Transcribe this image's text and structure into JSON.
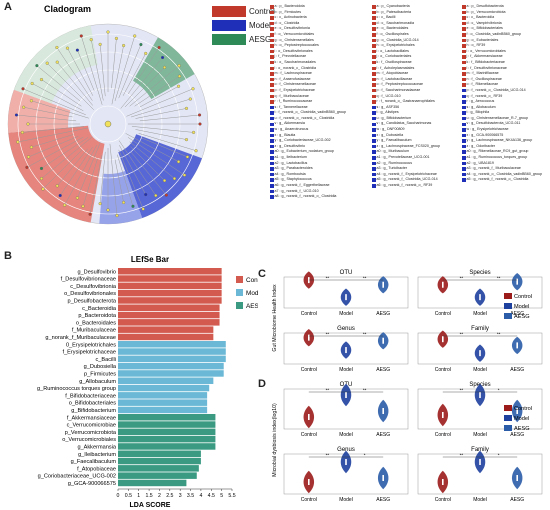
{
  "panels": {
    "a": "A",
    "b": "B",
    "c": "C",
    "d": "D"
  },
  "colors": {
    "control": "#c0392b",
    "model": "#1f2fb8",
    "aesg": "#2e8b57",
    "bar_control": "#d35a4f",
    "bar_model": "#6ab8d6",
    "bar_aesg": "#3a9a82",
    "violin_control": "#9b1b1b",
    "violin_model": "#1d3f9e",
    "violin_aesg": "#2a5ca8"
  },
  "cladogram": {
    "title": "Cladogram",
    "legend": [
      "Control",
      "Model",
      "AESG"
    ],
    "taxa_columns": [
      [
        {
          "label": "a : p_ Bacteroidota",
          "group": "control"
        },
        {
          "label": "b : p_ Firmicutes",
          "group": "control"
        },
        {
          "label": "c : c_ Actinobacteria",
          "group": "control"
        },
        {
          "label": "d : c_ Clostridia",
          "group": "control"
        },
        {
          "label": "e : c_ Desulfovibrionia",
          "group": "control"
        },
        {
          "label": "f : o_ Verrucomicrobiales",
          "group": "control"
        },
        {
          "label": "g : o_ Christensenellales",
          "group": "control"
        },
        {
          "label": "h : o_ Peptostreptococcales",
          "group": "control"
        },
        {
          "label": "i : o_ Desulfovibrionales",
          "group": "control"
        },
        {
          "label": "j : f_ Prevotellaceae",
          "group": "control"
        },
        {
          "label": "k : o_ Saccharimonadales",
          "group": "control"
        },
        {
          "label": "l : o_ norank_c_ Clostridia",
          "group": "control"
        },
        {
          "label": "m : f_ Lachnospiraceae",
          "group": "control"
        },
        {
          "label": "n : f_ Anaerofustaceae",
          "group": "control"
        },
        {
          "label": "o : f_ Christensenellaceae",
          "group": "control"
        },
        {
          "label": "p : f_ Erysipelotrichaceae",
          "group": "control"
        },
        {
          "label": "q : f_ Muribaculaceae",
          "group": "control"
        },
        {
          "label": "r : f_ Ruminococcaceae",
          "group": "control"
        },
        {
          "label": "s : f_ Tannerellaceae",
          "group": "model"
        },
        {
          "label": "t : f_ norank_o_ Clostridia_vadinBB60_group",
          "group": "model"
        },
        {
          "label": "u : f_ norank_o_ norank_c_ Clostridia",
          "group": "model"
        },
        {
          "label": "v : g_ Akkermansia",
          "group": "model"
        },
        {
          "label": "w : g_ Anaerotruncus",
          "group": "model"
        },
        {
          "label": "x : g_ Blautia",
          "group": "model"
        },
        {
          "label": "y : g_ Coriobacteriaceae_UCG-002",
          "group": "model"
        },
        {
          "label": "z : g_ Desulfovibrio",
          "group": "model"
        },
        {
          "label": "a0 : g_ Eubacterium_nodatum_group",
          "group": "model"
        },
        {
          "label": "a1 : g_ Ileibacterium",
          "group": "model"
        },
        {
          "label": "a2 : g_ Lactobacillus",
          "group": "model"
        },
        {
          "label": "a3 : g_ Parabacteroides",
          "group": "model"
        },
        {
          "label": "a4 : g_ Romboutsia",
          "group": "model"
        },
        {
          "label": "a5 : g_ Staphylococcus",
          "group": "model"
        },
        {
          "label": "a6 : g_ norank_f_ Eggerthellaceae",
          "group": "model"
        },
        {
          "label": "a7 : g_ norank_f_ UCG-010",
          "group": "model"
        },
        {
          "label": "a8 : g_ norank_f_ norank_o_ Clostridia",
          "group": "model"
        }
      ],
      [
        {
          "label": "a : p_ Cyanobacteria",
          "group": "control"
        },
        {
          "label": "b : p_ Patescibacteria",
          "group": "control"
        },
        {
          "label": "c : c_ Bacilli",
          "group": "control"
        },
        {
          "label": "d : c_ Saccharimonadia",
          "group": "control"
        },
        {
          "label": "e : o_ Bacteroidales",
          "group": "control"
        },
        {
          "label": "f : o_ Oscillospirales",
          "group": "control"
        },
        {
          "label": "g : o_ Clostridia_UCG-014",
          "group": "control"
        },
        {
          "label": "h : o_ Erysipelotrichales",
          "group": "control"
        },
        {
          "label": "i : o_ Lactobacillales",
          "group": "control"
        },
        {
          "label": "j : o_ Coriobacteriales",
          "group": "control"
        },
        {
          "label": "k : f_ Oscillospiraceae",
          "group": "control"
        },
        {
          "label": "l : f_ Acholeplasmatales",
          "group": "control"
        },
        {
          "label": "m : f_ Atopobiaceae",
          "group": "control"
        },
        {
          "label": "n : f_ Lactobacillaceae",
          "group": "control"
        },
        {
          "label": "o : f_ Peptostreptococcaceae",
          "group": "control"
        },
        {
          "label": "p : f_ Saccharimonadaceae",
          "group": "control"
        },
        {
          "label": "q : f_ UCG-010",
          "group": "control"
        },
        {
          "label": "r : f_ norank_o_ Gastranaerophilales",
          "group": "control"
        },
        {
          "label": "s : g_ ASF356",
          "group": "model"
        },
        {
          "label": "t : g_ Alistipes",
          "group": "model"
        },
        {
          "label": "u : g_ Bifidobacterium",
          "group": "model"
        },
        {
          "label": "v : g_ Candidatus_Saccharimonas",
          "group": "model"
        },
        {
          "label": "w : g_ DNF00809",
          "group": "model"
        },
        {
          "label": "x : g_ Dubosiella",
          "group": "model"
        },
        {
          "label": "y : g_ Faecalibaculum",
          "group": "model"
        },
        {
          "label": "z : g_ Lachnospiraceae_FCS020_group",
          "group": "model"
        },
        {
          "label": "a0 : g_ Muribaculum",
          "group": "model"
        },
        {
          "label": "a1 : g_ Prevotellaceae_UCG-001",
          "group": "model"
        },
        {
          "label": "a2 : g_ Ruminococcus",
          "group": "model"
        },
        {
          "label": "a3 : g_ Turicibacter",
          "group": "model"
        },
        {
          "label": "a4 : g_ norank_f_ Erysipelotrichaceae",
          "group": "model"
        },
        {
          "label": "a5 : g_ norank_f_ Clostridia_UCG-014",
          "group": "model"
        },
        {
          "label": "a6 : g_ norank_f_ norank_o_ RF39",
          "group": "model"
        }
      ],
      [
        {
          "label": "a : p_ Desulfobacterota",
          "group": "control"
        },
        {
          "label": "b : p_ Verrucomicrobiota",
          "group": "control"
        },
        {
          "label": "c : c_ Bacteroidia",
          "group": "control"
        },
        {
          "label": "d : c_ Vampirivibrionia",
          "group": "control"
        },
        {
          "label": "e : o_ Bifidobacteriales",
          "group": "control"
        },
        {
          "label": "f : o_ Clostridia_vadinBB60_group",
          "group": "control"
        },
        {
          "label": "g : o_ Eubacteriales",
          "group": "control"
        },
        {
          "label": "h : o_ RF39",
          "group": "control"
        },
        {
          "label": "i : o_ Verrucomicrobiales",
          "group": "control"
        },
        {
          "label": "j : f_ Akkermansiaceae",
          "group": "control"
        },
        {
          "label": "k : f_ Bifidobacteriaceae",
          "group": "control"
        },
        {
          "label": "l : f_ Desulfovibrionaceae",
          "group": "control"
        },
        {
          "label": "m : f_ Marinifilaceae",
          "group": "control"
        },
        {
          "label": "n : f_ Oscillospiraceae",
          "group": "control"
        },
        {
          "label": "o : f_ Rikenellaceae",
          "group": "control"
        },
        {
          "label": "p : f_ norank_o_ Clostridia_UCG-014",
          "group": "model"
        },
        {
          "label": "q : f_ norank_o_ RF39",
          "group": "model"
        },
        {
          "label": "r : g_ Aerococcus",
          "group": "model"
        },
        {
          "label": "s : g_ Allobaculum",
          "group": "model"
        },
        {
          "label": "t : g_ Bilophila",
          "group": "model"
        },
        {
          "label": "u : g_ Christensenellaceae_R-7_group",
          "group": "model"
        },
        {
          "label": "v : g_ Desulfobacterota_UCG-011",
          "group": "model"
        },
        {
          "label": "w : g_ Erysipelotrichaceae",
          "group": "model"
        },
        {
          "label": "x : g_ GCA-900066575",
          "group": "model"
        },
        {
          "label": "y : g_ Lachnospiraceae_NK4A136_group",
          "group": "model"
        },
        {
          "label": "z : g_ Odoribacter",
          "group": "model"
        },
        {
          "label": "a0 : g_ Rikenellaceae_RC9_gut_group",
          "group": "model"
        },
        {
          "label": "a1 : g_ Ruminococcus_torques_group",
          "group": "model"
        },
        {
          "label": "a2 : g_ UBA1819",
          "group": "model"
        },
        {
          "label": "a3 : g_ norank_f_ Muribaculaceae",
          "group": "model"
        },
        {
          "label": "a4 : g_ norank_o_ Clostridia_vadinBB60_group",
          "group": "model"
        },
        {
          "label": "a5 : g_ norank_f_ norank_o_ Clostridia",
          "group": "model"
        }
      ]
    ]
  },
  "chart_data": [
    {
      "type": "bar",
      "orientation": "horizontal",
      "title": "LEfSe Bar",
      "xlabel": "LDA SCORE",
      "xlim": [
        0,
        5.5
      ],
      "xticks": [
        "0",
        "0.5",
        "1",
        "1.5",
        "2",
        "2.5",
        "3",
        "3.5",
        "4",
        "4.5",
        "5",
        "5.5"
      ],
      "legend": [
        "Control",
        "Model",
        "AESG"
      ],
      "legend_position": "right",
      "bars": [
        {
          "label": "g_Desulfovibrio",
          "value": 5.0,
          "group": "Control"
        },
        {
          "label": "f_Desulfovibrionaceae",
          "value": 5.0,
          "group": "Control"
        },
        {
          "label": "c_Desulfovibrionia",
          "value": 5.0,
          "group": "Control"
        },
        {
          "label": "o_Desulfovibrionales",
          "value": 5.0,
          "group": "Control"
        },
        {
          "label": "p_Desulfobacterota",
          "value": 5.0,
          "group": "Control"
        },
        {
          "label": "c_Bacteroidia",
          "value": 4.9,
          "group": "Control"
        },
        {
          "label": "p_Bacteroidota",
          "value": 4.9,
          "group": "Control"
        },
        {
          "label": "o_Bacteroidales",
          "value": 4.9,
          "group": "Control"
        },
        {
          "label": "f_Muribaculaceae",
          "value": 4.6,
          "group": "Control"
        },
        {
          "label": "g_norank_f_Muribaculaceae",
          "value": 4.6,
          "group": "Control"
        },
        {
          "label": "0_Erysipelotrichales",
          "value": 5.2,
          "group": "Model"
        },
        {
          "label": "f_Erysipelotrichaceae",
          "value": 5.2,
          "group": "Model"
        },
        {
          "label": "c_Bacilli",
          "value": 5.2,
          "group": "Model"
        },
        {
          "label": "g_Dubosiella",
          "value": 5.1,
          "group": "Model"
        },
        {
          "label": "p_Firmicutes",
          "value": 5.1,
          "group": "Model"
        },
        {
          "label": "g_Allobaculum",
          "value": 4.6,
          "group": "Model"
        },
        {
          "label": "g_Ruminococcus torques group",
          "value": 4.4,
          "group": "Model"
        },
        {
          "label": "f_Bifidobacteriaceae",
          "value": 4.3,
          "group": "Model"
        },
        {
          "label": "o_Bifidobacteriales",
          "value": 4.3,
          "group": "Model"
        },
        {
          "label": "g_Bifidobacterium",
          "value": 4.3,
          "group": "Model"
        },
        {
          "label": "f_Akkermansiaceae",
          "value": 4.7,
          "group": "AESG"
        },
        {
          "label": "c_Verrucomicrobiae",
          "value": 4.7,
          "group": "AESG"
        },
        {
          "label": "p_Verrucomicrobiota",
          "value": 4.7,
          "group": "AESG"
        },
        {
          "label": "o_Verrucomicrobiales",
          "value": 4.7,
          "group": "AESG"
        },
        {
          "label": "g_Akkermansia",
          "value": 4.7,
          "group": "AESG"
        },
        {
          "label": "g_Ileibacterium",
          "value": 4.0,
          "group": "AESG"
        },
        {
          "label": "g_Faecalibaculum",
          "value": 4.0,
          "group": "AESG"
        },
        {
          "label": "f_Atopobiaceae",
          "value": 3.9,
          "group": "AESG"
        },
        {
          "label": "g_Coriobacteriaceae_UCG-002",
          "value": 3.8,
          "group": "AESG"
        },
        {
          "label": "g_GCA-900066575",
          "value": 3.3,
          "group": "AESG"
        }
      ]
    },
    {
      "type": "violin",
      "panel": "C",
      "ylabel": "Gut Microbiome Health Index",
      "legend": [
        "Control",
        "Model",
        "AESG"
      ],
      "subplots": [
        {
          "title": "OTU",
          "categories": [
            "Control",
            "Model",
            "AESG"
          ],
          "medians": [
            0.9,
            0.35,
            0.75
          ],
          "significance": [
            "**",
            "**"
          ]
        },
        {
          "title": "Species",
          "categories": [
            "Control",
            "Model",
            "AESG"
          ],
          "medians": [
            0.75,
            0.35,
            0.85
          ],
          "significance": [
            "**",
            "**"
          ]
        },
        {
          "title": "Genus",
          "categories": [
            "Control",
            "Model",
            "AESG"
          ],
          "medians": [
            0.85,
            0.45,
            0.75
          ],
          "significance": [
            "**",
            "**"
          ]
        },
        {
          "title": "Family",
          "categories": [
            "Control",
            "Model",
            "AESG"
          ],
          "medians": [
            0.8,
            0.35,
            0.6
          ],
          "significance": [
            "**",
            "**"
          ]
        }
      ]
    },
    {
      "type": "violin",
      "panel": "D",
      "ylabel": "Microbial dysbiosis index(log10)",
      "legend": [
        "Control",
        "Model",
        "AESG"
      ],
      "subplots": [
        {
          "title": "OTU",
          "categories": [
            "Control",
            "Model",
            "AESG"
          ],
          "medians": [
            0.3,
            0.85,
            0.45
          ],
          "significance": [
            "**",
            "**"
          ]
        },
        {
          "title": "Species",
          "categories": [
            "Control",
            "Model",
            "AESG"
          ],
          "medians": [
            0.35,
            0.85,
            0.45
          ],
          "significance": [
            "**",
            "*"
          ]
        },
        {
          "title": "Genus",
          "categories": [
            "Control",
            "Model",
            "AESG"
          ],
          "medians": [
            0.3,
            0.8,
            0.4
          ],
          "significance": [
            "**",
            "*"
          ]
        },
        {
          "title": "Family",
          "categories": [
            "Control",
            "Model",
            "AESG"
          ],
          "medians": [
            0.3,
            0.8,
            0.4
          ],
          "significance": [
            "**",
            "*"
          ]
        }
      ]
    }
  ]
}
